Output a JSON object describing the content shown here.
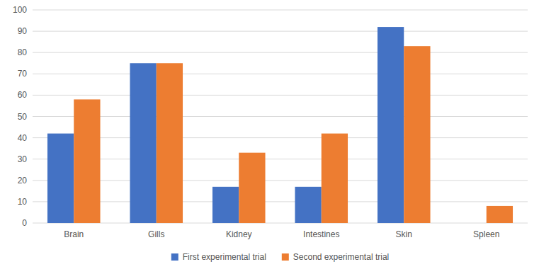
{
  "chart_data": {
    "type": "bar",
    "categories": [
      "Brain",
      "Gills",
      "Kidney",
      "Intestines",
      "Skin",
      "Spleen"
    ],
    "series": [
      {
        "name": "First experimental trial",
        "color": "#4472C4",
        "values": [
          42,
          75,
          17,
          17,
          92,
          0
        ]
      },
      {
        "name": "Second experimental trial",
        "color": "#ED7D31",
        "values": [
          58,
          75,
          33,
          42,
          83,
          8
        ]
      }
    ],
    "ylim": [
      0,
      100
    ],
    "yticks": [
      0,
      10,
      20,
      30,
      40,
      50,
      60,
      70,
      80,
      90,
      100
    ],
    "grid": true,
    "legend": "bottom"
  }
}
